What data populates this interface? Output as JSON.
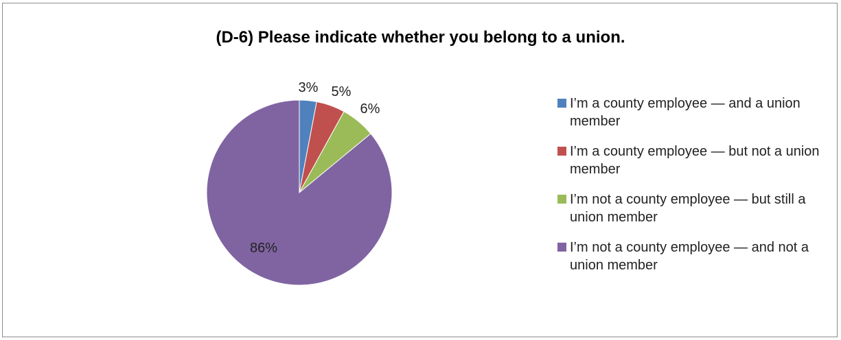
{
  "chart_data": {
    "type": "pie",
    "title": "(D-6)  Please indicate whether you belong to a union.",
    "slices": [
      {
        "label": "I’m a county employee — and a union member",
        "value": 3,
        "value_label": "3%",
        "color": "#4f81bd"
      },
      {
        "label": "I’m a county employee — but not a union member",
        "value": 5,
        "value_label": "5%",
        "color": "#c0504d"
      },
      {
        "label": "I’m not a county employee — but still a union member",
        "value": 6,
        "value_label": "6%",
        "color": "#9bbb59"
      },
      {
        "label": "I’m not a county employee — and not a union member",
        "value": 86,
        "value_label": "86%",
        "color": "#8064a2"
      }
    ],
    "legend_position": "right"
  }
}
